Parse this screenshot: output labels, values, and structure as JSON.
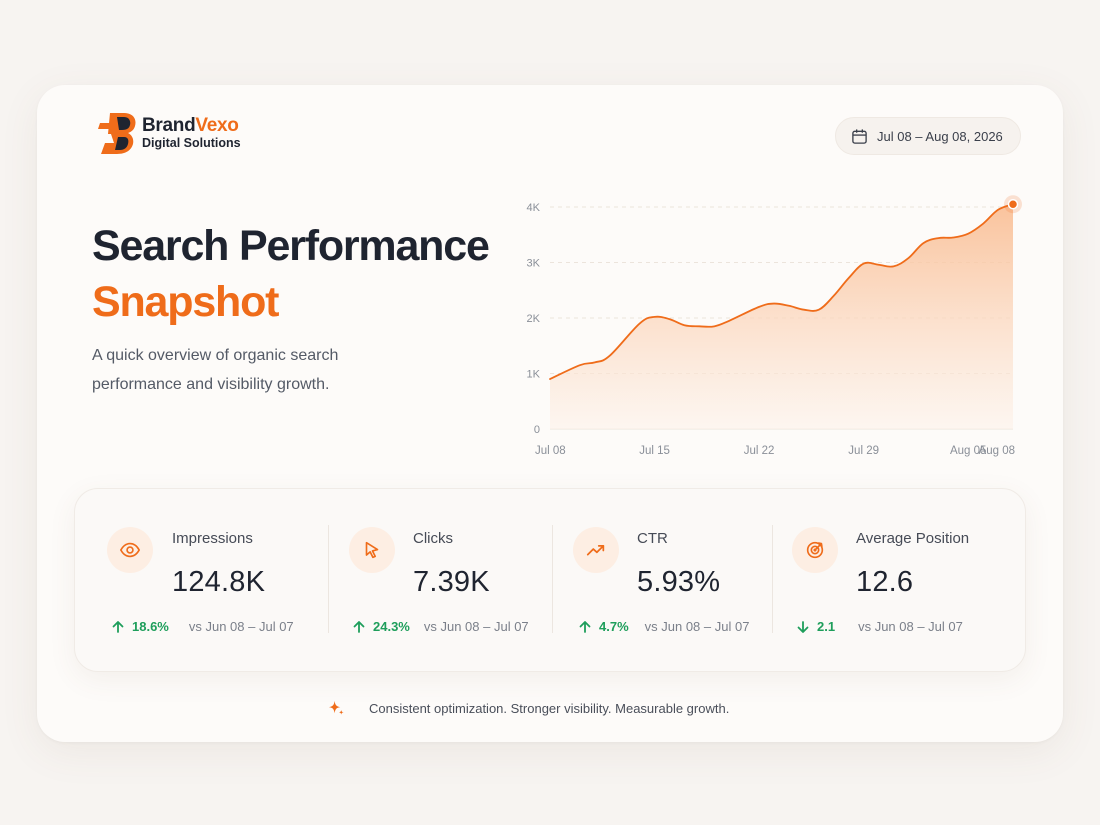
{
  "brand": {
    "name_part1": "Brand",
    "name_part2": "Vexo",
    "tagline": "Digital Solutions"
  },
  "date_range": {
    "icon": "calendar-icon",
    "label": "Jul 08 – Aug 08, 2026"
  },
  "hero": {
    "title_line1": "Search Performance",
    "title_line2": "Snapshot",
    "subtitle": "A quick overview of organic search performance and visibility growth."
  },
  "chart_data": {
    "type": "area",
    "title": "",
    "xlabel": "",
    "ylabel": "",
    "x_ticks": [
      "Jul 08",
      "Jul 15",
      "Jul 22",
      "Jul 29",
      "Aug 05",
      "Aug 08"
    ],
    "y_ticks": [
      "0",
      "1K",
      "2K",
      "3K",
      "4K"
    ],
    "ylim": [
      0,
      4000
    ],
    "grid": true,
    "series": [
      {
        "x": [
          "Jul 08",
          "Jul 10",
          "Jul 11",
          "Jul 12",
          "Jul 14",
          "Jul 15",
          "Jul 16",
          "Jul 17",
          "Jul 18",
          "Jul 19",
          "Jul 20",
          "Jul 22",
          "Jul 23",
          "Jul 24",
          "Jul 25",
          "Jul 26",
          "Jul 27",
          "Jul 28",
          "Jul 29",
          "Jul 30",
          "Jul 31",
          "Aug 01",
          "Aug 02",
          "Aug 03",
          "Aug 04",
          "Aug 05",
          "Aug 06",
          "Aug 07",
          "Aug 08"
        ],
        "values": [
          900,
          1150,
          1200,
          1320,
          1900,
          2020,
          1980,
          1870,
          1850,
          1850,
          1950,
          2200,
          2260,
          2220,
          2150,
          2150,
          2400,
          2720,
          2980,
          2960,
          2930,
          3080,
          3350,
          3440,
          3450,
          3520,
          3700,
          3950,
          4050
        ]
      }
    ],
    "highlight_last_point": true,
    "colors": {
      "line": "#ef6c1a",
      "fill_top": "#f9b98c",
      "fill_bottom": "#fdf2ea"
    }
  },
  "stats": [
    {
      "icon": "eye-icon",
      "label": "Impressions",
      "value": "124.8K",
      "direction": "up",
      "change": "18.6%",
      "compare": "vs Jun 08 – Jul 07"
    },
    {
      "icon": "cursor-icon",
      "label": "Clicks",
      "value": "7.39K",
      "direction": "up",
      "change": "24.3%",
      "compare": "vs Jun 08 – Jul 07"
    },
    {
      "icon": "trend-up-icon",
      "label": "CTR",
      "value": "5.93%",
      "direction": "up",
      "change": "4.7%",
      "compare": "vs Jun 08 – Jul 07"
    },
    {
      "icon": "target-icon",
      "label": "Average Position",
      "value": "12.6",
      "direction": "down",
      "change": "2.1",
      "compare": "vs Jun 08 – Jul 07"
    }
  ],
  "footer": {
    "icon": "sparkle-icon",
    "text": "Consistent optimization. Stronger visibility. Measurable growth."
  },
  "colors": {
    "accent": "#ef6c1a",
    "positive": "#1e9e5b",
    "text_dark": "#1f2430"
  }
}
